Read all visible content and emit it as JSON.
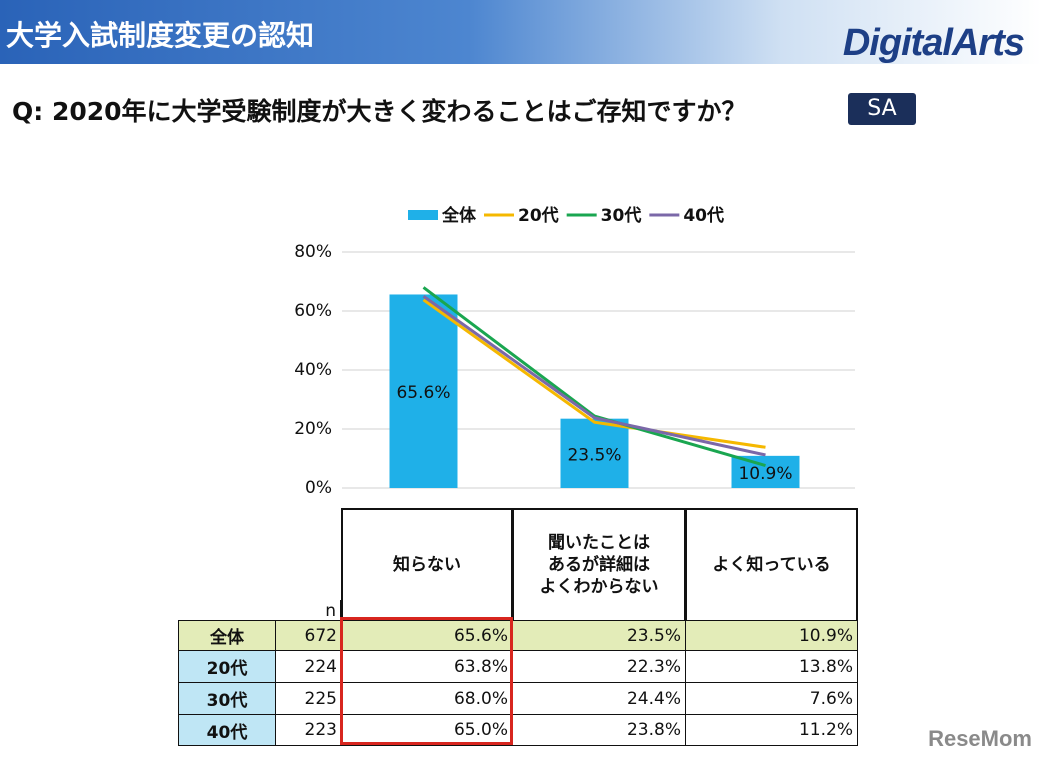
{
  "header": {
    "title": "大学入試制度変更の認知",
    "logo": "DigitalArts"
  },
  "question": "Q:  2020年に大学受験制度が大きく変わることはご存知ですか？",
  "badge": "SA",
  "chart_data": {
    "type": "bar",
    "categories": [
      "知らない",
      "聞いたことは\nあるが詳細は\nよくわからない",
      "よく知っている"
    ],
    "series": [
      {
        "name": "全体",
        "type": "bar",
        "color": "#1fb0e8",
        "values": [
          65.6,
          23.5,
          10.9
        ],
        "value_labels": [
          "65.6%",
          "23.5%",
          "10.9%"
        ]
      },
      {
        "name": "20代",
        "type": "line",
        "color": "#f5b800",
        "values": [
          63.8,
          22.3,
          13.8
        ]
      },
      {
        "name": "30代",
        "type": "line",
        "color": "#1aa650",
        "values": [
          68.0,
          24.4,
          7.6
        ]
      },
      {
        "name": "40代",
        "type": "line",
        "color": "#7b68a8",
        "values": [
          65.0,
          23.8,
          11.2
        ]
      }
    ],
    "ylim": [
      0,
      80
    ],
    "yticks": [
      {
        "value": 0,
        "label": "0%"
      },
      {
        "value": 20,
        "label": "20%"
      },
      {
        "value": 40,
        "label": "40%"
      },
      {
        "value": 60,
        "label": "60%"
      },
      {
        "value": 80,
        "label": "80%"
      }
    ],
    "grid": true,
    "legend": "top"
  },
  "table": {
    "n_header": "n",
    "rows": [
      [
        "全体",
        "672",
        "65.6%",
        "23.5%",
        "10.9%"
      ],
      [
        "20代",
        "224",
        "63.8%",
        "22.3%",
        "13.8%"
      ],
      [
        "30代",
        "225",
        "68.0%",
        "24.4%",
        "7.6%"
      ],
      [
        "40代",
        "223",
        "65.0%",
        "23.8%",
        "11.2%"
      ]
    ]
  },
  "watermark": "ReseMom"
}
